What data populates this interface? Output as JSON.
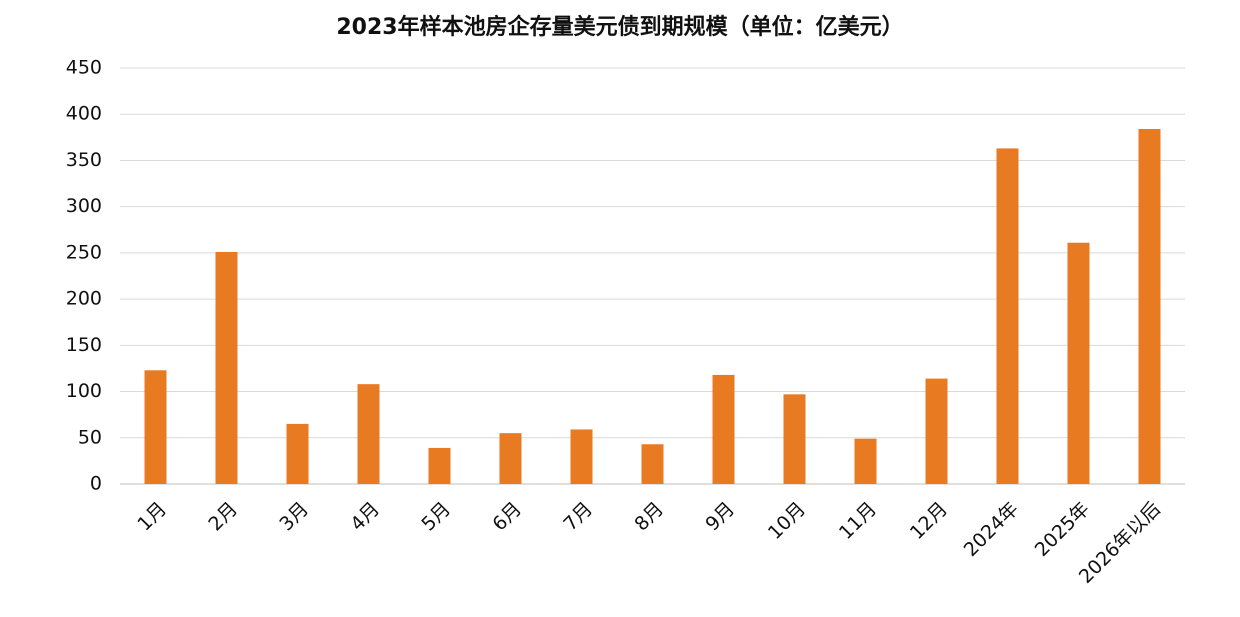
{
  "chart_data": {
    "type": "bar",
    "title": "2023年样本池房企存量美元债到期规模（单位：亿美元）",
    "categories": [
      "1月",
      "2月",
      "3月",
      "4月",
      "5月",
      "6月",
      "7月",
      "8月",
      "9月",
      "10月",
      "11月",
      "12月",
      "2024年",
      "2025年",
      "2026年以后"
    ],
    "values": [
      123,
      251,
      65,
      108,
      39,
      55,
      59,
      43,
      118,
      97,
      49,
      114,
      363,
      261,
      384
    ],
    "color": "#e87a22",
    "ylim": [
      0,
      450
    ],
    "yticks": [
      0,
      50,
      100,
      150,
      200,
      250,
      300,
      350,
      400,
      450
    ],
    "grid": true
  }
}
